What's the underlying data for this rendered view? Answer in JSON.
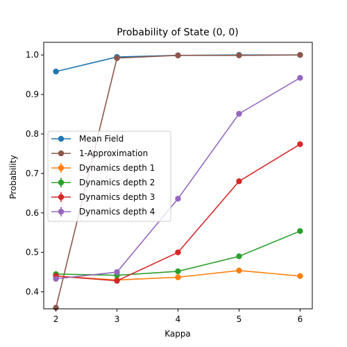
{
  "chart_data": {
    "type": "line",
    "title": "Probability of State (0, 0)",
    "xlabel": "Kappa",
    "ylabel": "Probability",
    "x": [
      2,
      3,
      4,
      5,
      6
    ],
    "xlim": [
      1.8,
      6.2
    ],
    "ylim": [
      0.357,
      1.032
    ],
    "xticks": [
      2,
      3,
      4,
      5,
      6
    ],
    "yticks": [
      0.4,
      0.5,
      0.6,
      0.7,
      0.8,
      0.9,
      1.0
    ],
    "ytick_labels": [
      "0.4",
      "0.5",
      "0.6",
      "0.7",
      "0.8",
      "0.9",
      "1.0"
    ],
    "grid": false,
    "legend_position": "center-left",
    "series": [
      {
        "name": "Mean Field",
        "color": "#1f77b4",
        "marker": "circle",
        "errorbars": false,
        "x": [
          2,
          3,
          4,
          5,
          6
        ],
        "values": [
          0.958,
          0.995,
          0.999,
          1.0,
          1.0
        ]
      },
      {
        "name": "1-Approximation",
        "color": "#8c564b",
        "marker": "circle",
        "errorbars": false,
        "x": [
          2,
          3,
          4,
          5,
          6
        ],
        "values": [
          0.36,
          0.992,
          0.999,
          0.999,
          1.0
        ]
      },
      {
        "name": "Dynamics depth 1",
        "color": "#ff7f0e",
        "marker": "circle",
        "errorbars": true,
        "x": [
          2,
          3,
          4,
          5,
          6
        ],
        "values": [
          0.44,
          0.43,
          0.437,
          0.454,
          0.44
        ]
      },
      {
        "name": "Dynamics depth 2",
        "color": "#2ca02c",
        "marker": "circle",
        "errorbars": true,
        "x": [
          2,
          3,
          4,
          5,
          6
        ],
        "values": [
          0.445,
          0.442,
          0.452,
          0.49,
          0.554
        ]
      },
      {
        "name": "Dynamics depth 3",
        "color": "#d62728",
        "marker": "circle",
        "errorbars": true,
        "x": [
          2,
          3,
          4,
          5,
          6
        ],
        "values": [
          0.44,
          0.428,
          0.5,
          0.68,
          0.774
        ]
      },
      {
        "name": "Dynamics depth 4",
        "color": "#9467bd",
        "marker": "circle",
        "errorbars": true,
        "x": [
          2,
          3,
          4,
          5,
          6
        ],
        "values": [
          0.433,
          0.45,
          0.636,
          0.851,
          0.942
        ]
      }
    ]
  }
}
